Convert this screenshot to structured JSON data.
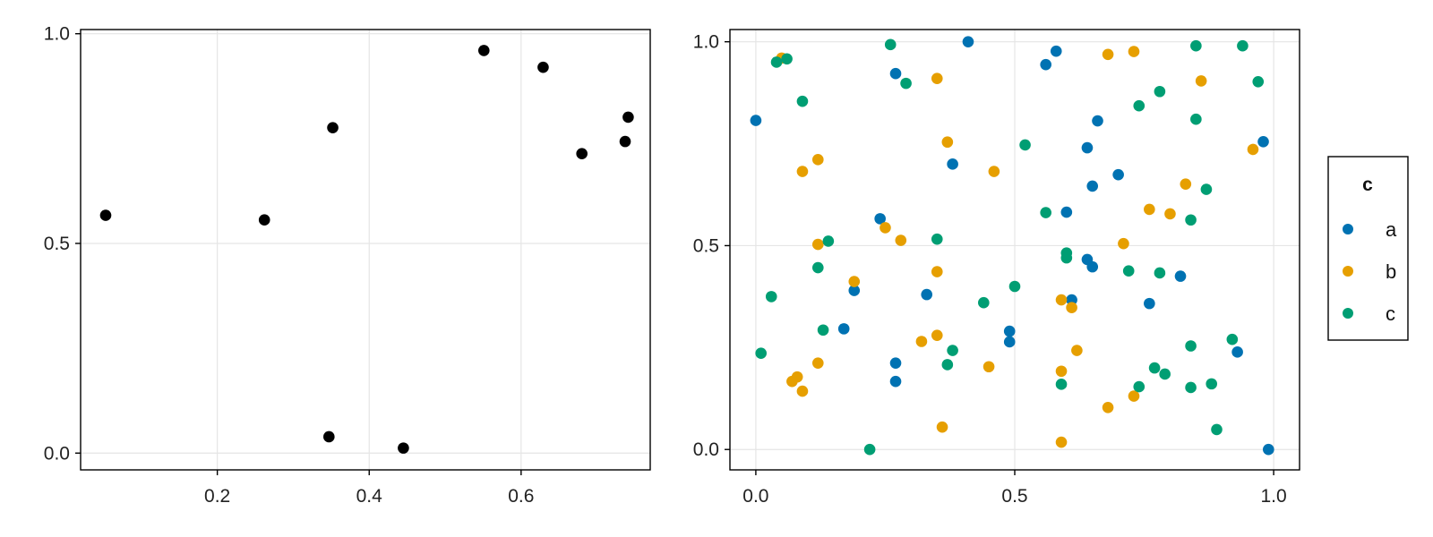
{
  "colors": {
    "a": "#0072B2",
    "b": "#E69F00",
    "c": "#009E73",
    "black": "#000000"
  },
  "legend": {
    "title": "c",
    "placement": "right",
    "entries": [
      {
        "label": "a",
        "color": "#0072B2"
      },
      {
        "label": "b",
        "color": "#E69F00"
      },
      {
        "label": "c",
        "color": "#009E73"
      }
    ]
  },
  "chart_data": [
    {
      "type": "scatter",
      "title": "",
      "xlabel": "",
      "ylabel": "",
      "grid": true,
      "xlim": [
        0.02,
        0.77
      ],
      "ylim": [
        -0.04,
        1.01
      ],
      "xticks": [
        0.2,
        0.4,
        0.6
      ],
      "xtick_labels": [
        "0.2",
        "0.4",
        "0.6"
      ],
      "yticks": [
        0.0,
        0.5,
        1.0
      ],
      "ytick_labels": [
        "0.0",
        "0.5",
        "1.0"
      ],
      "series": [
        {
          "color": "#000000",
          "points": [
            [
              0.053,
              0.567
            ],
            [
              0.262,
              0.556
            ],
            [
              0.352,
              0.776
            ],
            [
              0.347,
              0.039
            ],
            [
              0.445,
              0.012
            ],
            [
              0.551,
              0.96
            ],
            [
              0.629,
              0.92
            ],
            [
              0.68,
              0.714
            ],
            [
              0.737,
              0.743
            ],
            [
              0.741,
              0.801
            ]
          ]
        }
      ]
    },
    {
      "type": "scatter",
      "title": "",
      "xlabel": "",
      "ylabel": "",
      "grid": true,
      "xlim": [
        -0.05,
        1.05
      ],
      "ylim": [
        -0.05,
        1.03
      ],
      "xticks": [
        0.0,
        0.5,
        1.0
      ],
      "xtick_labels": [
        "0.0",
        "0.5",
        "1.0"
      ],
      "yticks": [
        0.0,
        0.5,
        1.0
      ],
      "ytick_labels": [
        "0.0",
        "0.5",
        "1.0"
      ],
      "series": [
        {
          "name": "a",
          "color": "#0072B2",
          "points": [
            [
              0.0,
              0.807
            ],
            [
              0.27,
              0.922
            ],
            [
              0.41,
              1.0
            ],
            [
              0.56,
              0.944
            ],
            [
              0.58,
              0.977
            ],
            [
              0.38,
              0.7
            ],
            [
              0.64,
              0.74
            ],
            [
              0.66,
              0.806
            ],
            [
              0.65,
              0.646
            ],
            [
              0.7,
              0.674
            ],
            [
              0.98,
              0.755
            ],
            [
              0.24,
              0.566
            ],
            [
              0.6,
              0.582
            ],
            [
              0.64,
              0.466
            ],
            [
              0.65,
              0.448
            ],
            [
              0.82,
              0.425
            ],
            [
              0.19,
              0.39
            ],
            [
              0.33,
              0.38
            ],
            [
              0.61,
              0.367
            ],
            [
              0.76,
              0.358
            ],
            [
              0.17,
              0.296
            ],
            [
              0.49,
              0.29
            ],
            [
              0.49,
              0.264
            ],
            [
              0.27,
              0.212
            ],
            [
              0.27,
              0.167
            ],
            [
              0.93,
              0.239
            ],
            [
              0.99,
              0.0
            ]
          ]
        },
        {
          "name": "b",
          "color": "#E69F00",
          "points": [
            [
              0.05,
              0.96
            ],
            [
              0.68,
              0.969
            ],
            [
              0.73,
              0.976
            ],
            [
              0.35,
              0.91
            ],
            [
              0.86,
              0.904
            ],
            [
              0.37,
              0.754
            ],
            [
              0.09,
              0.682
            ],
            [
              0.12,
              0.711
            ],
            [
              0.46,
              0.682
            ],
            [
              0.96,
              0.736
            ],
            [
              0.83,
              0.651
            ],
            [
              0.76,
              0.589
            ],
            [
              0.8,
              0.578
            ],
            [
              0.25,
              0.544
            ],
            [
              0.28,
              0.513
            ],
            [
              0.12,
              0.503
            ],
            [
              0.71,
              0.505
            ],
            [
              0.35,
              0.436
            ],
            [
              0.19,
              0.412
            ],
            [
              0.59,
              0.367
            ],
            [
              0.61,
              0.348
            ],
            [
              0.35,
              0.28
            ],
            [
              0.32,
              0.265
            ],
            [
              0.62,
              0.243
            ],
            [
              0.12,
              0.212
            ],
            [
              0.45,
              0.203
            ],
            [
              0.59,
              0.192
            ],
            [
              0.08,
              0.178
            ],
            [
              0.07,
              0.167
            ],
            [
              0.09,
              0.143
            ],
            [
              0.73,
              0.131
            ],
            [
              0.68,
              0.103
            ],
            [
              0.36,
              0.055
            ],
            [
              0.59,
              0.018
            ]
          ]
        },
        {
          "name": "c",
          "color": "#009E73",
          "points": [
            [
              0.26,
              0.993
            ],
            [
              0.04,
              0.95
            ],
            [
              0.06,
              0.958
            ],
            [
              0.85,
              0.99
            ],
            [
              0.94,
              0.99
            ],
            [
              0.29,
              0.898
            ],
            [
              0.97,
              0.902
            ],
            [
              0.78,
              0.878
            ],
            [
              0.09,
              0.854
            ],
            [
              0.74,
              0.843
            ],
            [
              0.85,
              0.81
            ],
            [
              0.52,
              0.747
            ],
            [
              0.87,
              0.638
            ],
            [
              0.56,
              0.581
            ],
            [
              0.84,
              0.563
            ],
            [
              0.35,
              0.516
            ],
            [
              0.14,
              0.511
            ],
            [
              0.6,
              0.482
            ],
            [
              0.6,
              0.47
            ],
            [
              0.72,
              0.438
            ],
            [
              0.78,
              0.433
            ],
            [
              0.12,
              0.446
            ],
            [
              0.03,
              0.375
            ],
            [
              0.44,
              0.36
            ],
            [
              0.5,
              0.4
            ],
            [
              0.13,
              0.293
            ],
            [
              0.01,
              0.236
            ],
            [
              0.38,
              0.243
            ],
            [
              0.37,
              0.208
            ],
            [
              0.84,
              0.254
            ],
            [
              0.92,
              0.27
            ],
            [
              0.77,
              0.2
            ],
            [
              0.79,
              0.185
            ],
            [
              0.59,
              0.16
            ],
            [
              0.74,
              0.154
            ],
            [
              0.84,
              0.152
            ],
            [
              0.88,
              0.161
            ],
            [
              0.89,
              0.049
            ],
            [
              0.22,
              0.0
            ]
          ]
        }
      ]
    }
  ]
}
